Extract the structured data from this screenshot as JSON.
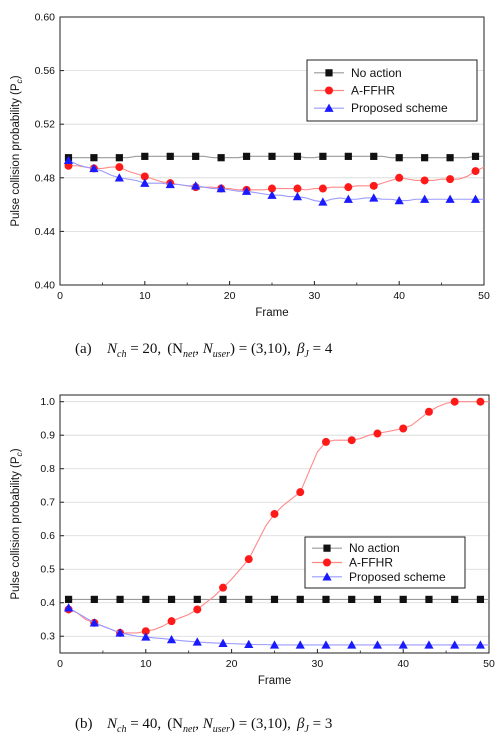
{
  "figure": {
    "captions": [
      {
        "label": "(a)",
        "text": "N_ch = 20, (N_net, N_user) = (3,10), β_J = 4",
        "parts": {
          "n_ch_base": "N",
          "n_ch_sub": "ch",
          "n_ch_val": " = 20,",
          "open": "(N",
          "net_sub": "net",
          "mid": ",  N",
          "user_sub": "user",
          "close": ") = (3,10),",
          "beta_base": "β",
          "beta_sub": "J",
          "beta_val": " = 4"
        }
      },
      {
        "label": "(b)",
        "text": "N_ch = 40, (N_net, N_user) = (3,10), β_J = 3",
        "parts": {
          "n_ch_base": "N",
          "n_ch_sub": "ch",
          "n_ch_val": " = 40,",
          "open": "(N",
          "net_sub": "net",
          "mid": ",  N",
          "user_sub": "user",
          "close": ") = (3,10),",
          "beta_base": "β",
          "beta_sub": "J",
          "beta_val": " = 3"
        }
      }
    ]
  },
  "chart_data": [
    {
      "type": "line",
      "xlabel": "Frame",
      "ylabel": "Pulse collision probability (P",
      "ylabel_sub": "c",
      "ylabel_end": ")",
      "xlim": [
        0,
        50
      ],
      "ylim": [
        0.4,
        0.6
      ],
      "xticks": [
        0,
        10,
        20,
        30,
        40,
        50
      ],
      "xtick_labels": [
        "0",
        "10",
        "20",
        "30",
        "40",
        "50"
      ],
      "yticks": [
        0.4,
        0.44,
        0.48,
        0.52,
        0.56,
        0.6
      ],
      "ytick_labels": [
        "0.40",
        "0.44",
        "0.48",
        "0.52",
        "0.56",
        "0.60"
      ],
      "grid": true,
      "legend_position": "top-right",
      "series": [
        {
          "name": "No action",
          "color": "#111111",
          "marker": "square",
          "line_color": "#9a9a9a",
          "x": [
            1,
            2,
            3,
            4,
            5,
            6,
            7,
            8,
            9,
            10,
            11,
            12,
            13,
            14,
            15,
            16,
            17,
            18,
            19,
            20,
            21,
            22,
            23,
            24,
            25,
            26,
            27,
            28,
            29,
            30,
            31,
            32,
            33,
            34,
            35,
            36,
            37,
            38,
            39,
            40,
            41,
            42,
            43,
            44,
            45,
            46,
            47,
            48,
            49,
            50
          ],
          "y": [
            0.495,
            0.495,
            0.495,
            0.495,
            0.495,
            0.495,
            0.495,
            0.495,
            0.496,
            0.496,
            0.496,
            0.496,
            0.496,
            0.496,
            0.496,
            0.496,
            0.496,
            0.495,
            0.495,
            0.495,
            0.495,
            0.496,
            0.496,
            0.496,
            0.496,
            0.496,
            0.496,
            0.496,
            0.495,
            0.495,
            0.496,
            0.496,
            0.496,
            0.496,
            0.496,
            0.496,
            0.496,
            0.496,
            0.495,
            0.495,
            0.495,
            0.495,
            0.495,
            0.495,
            0.495,
            0.495,
            0.495,
            0.495,
            0.496,
            0.496
          ],
          "marker_every": 3
        },
        {
          "name": "A-FFHR",
          "color": "#ff1a1a",
          "marker": "circle",
          "line_color": "#ff8a8a",
          "x": [
            1,
            2,
            3,
            4,
            5,
            6,
            7,
            8,
            9,
            10,
            11,
            12,
            13,
            14,
            15,
            16,
            17,
            18,
            19,
            20,
            21,
            22,
            23,
            24,
            25,
            26,
            27,
            28,
            29,
            30,
            31,
            32,
            33,
            34,
            35,
            36,
            37,
            38,
            39,
            40,
            41,
            42,
            43,
            44,
            45,
            46,
            47,
            48,
            49,
            50
          ],
          "y": [
            0.489,
            0.489,
            0.488,
            0.487,
            0.487,
            0.488,
            0.488,
            0.485,
            0.483,
            0.481,
            0.479,
            0.477,
            0.476,
            0.475,
            0.474,
            0.473,
            0.473,
            0.473,
            0.472,
            0.472,
            0.471,
            0.471,
            0.471,
            0.471,
            0.472,
            0.472,
            0.472,
            0.472,
            0.471,
            0.472,
            0.472,
            0.473,
            0.473,
            0.473,
            0.474,
            0.474,
            0.474,
            0.476,
            0.478,
            0.48,
            0.479,
            0.478,
            0.478,
            0.478,
            0.479,
            0.479,
            0.479,
            0.481,
            0.485,
            0.488
          ],
          "marker_every": 3
        },
        {
          "name": "Proposed scheme",
          "color": "#1a1aff",
          "marker": "triangle",
          "line_color": "#9a9aff",
          "x": [
            1,
            2,
            3,
            4,
            5,
            6,
            7,
            8,
            9,
            10,
            11,
            12,
            13,
            14,
            15,
            16,
            17,
            18,
            19,
            20,
            21,
            22,
            23,
            24,
            25,
            26,
            27,
            28,
            29,
            30,
            31,
            32,
            33,
            34,
            35,
            36,
            37,
            38,
            39,
            40,
            41,
            42,
            43,
            44,
            45,
            46,
            47,
            48,
            49,
            50
          ],
          "y": [
            0.493,
            0.49,
            0.488,
            0.487,
            0.485,
            0.482,
            0.48,
            0.479,
            0.478,
            0.476,
            0.476,
            0.476,
            0.475,
            0.475,
            0.474,
            0.474,
            0.473,
            0.472,
            0.472,
            0.471,
            0.47,
            0.47,
            0.469,
            0.468,
            0.467,
            0.467,
            0.466,
            0.466,
            0.465,
            0.463,
            0.462,
            0.464,
            0.465,
            0.464,
            0.464,
            0.465,
            0.465,
            0.464,
            0.464,
            0.463,
            0.463,
            0.464,
            0.464,
            0.464,
            0.464,
            0.464,
            0.464,
            0.464,
            0.464,
            0.464
          ],
          "marker_every": 3
        }
      ]
    },
    {
      "type": "line",
      "xlabel": "Frame",
      "ylabel": "Pulse collision probability (P",
      "ylabel_sub": "c",
      "ylabel_end": ")",
      "xlim": [
        0,
        50
      ],
      "ylim": [
        0.25,
        1.02
      ],
      "xticks": [
        0,
        10,
        20,
        30,
        40,
        50
      ],
      "xtick_labels": [
        "0",
        "10",
        "20",
        "30",
        "40",
        "50"
      ],
      "yticks": [
        0.3,
        0.4,
        0.5,
        0.6,
        0.7,
        0.8,
        0.9,
        1.0
      ],
      "ytick_labels": [
        "0.3",
        "0.4",
        "0.5",
        "0.6",
        "0.7",
        "0.8",
        "0.9",
        "1.0"
      ],
      "grid": true,
      "legend_position": "bottom-right",
      "series": [
        {
          "name": "No action",
          "color": "#111111",
          "marker": "square",
          "line_color": "#9a9a9a",
          "x": [
            1,
            2,
            3,
            4,
            5,
            6,
            7,
            8,
            9,
            10,
            11,
            12,
            13,
            14,
            15,
            16,
            17,
            18,
            19,
            20,
            21,
            22,
            23,
            24,
            25,
            26,
            27,
            28,
            29,
            30,
            31,
            32,
            33,
            34,
            35,
            36,
            37,
            38,
            39,
            40,
            41,
            42,
            43,
            44,
            45,
            46,
            47,
            48,
            49,
            50
          ],
          "y": [
            0.41,
            0.41,
            0.41,
            0.41,
            0.41,
            0.41,
            0.41,
            0.41,
            0.41,
            0.41,
            0.41,
            0.41,
            0.41,
            0.41,
            0.41,
            0.41,
            0.41,
            0.41,
            0.41,
            0.41,
            0.41,
            0.41,
            0.41,
            0.41,
            0.41,
            0.41,
            0.41,
            0.41,
            0.41,
            0.41,
            0.41,
            0.41,
            0.41,
            0.41,
            0.41,
            0.41,
            0.41,
            0.41,
            0.41,
            0.41,
            0.41,
            0.41,
            0.41,
            0.41,
            0.41,
            0.41,
            0.41,
            0.41,
            0.41,
            0.41
          ],
          "marker_every": 3
        },
        {
          "name": "A-FFHR",
          "color": "#ff1a1a",
          "marker": "circle",
          "line_color": "#ff8a8a",
          "x": [
            1,
            2,
            3,
            4,
            5,
            6,
            7,
            8,
            9,
            10,
            11,
            12,
            13,
            14,
            15,
            16,
            17,
            18,
            19,
            20,
            21,
            22,
            23,
            24,
            25,
            26,
            27,
            28,
            29,
            30,
            31,
            32,
            33,
            34,
            35,
            36,
            37,
            38,
            39,
            40,
            41,
            42,
            43,
            44,
            45,
            46,
            47,
            48,
            49,
            50
          ],
          "y": [
            0.38,
            0.37,
            0.35,
            0.34,
            0.33,
            0.32,
            0.31,
            0.31,
            0.31,
            0.315,
            0.32,
            0.33,
            0.345,
            0.355,
            0.365,
            0.38,
            0.4,
            0.42,
            0.445,
            0.47,
            0.5,
            0.53,
            0.58,
            0.63,
            0.665,
            0.69,
            0.71,
            0.73,
            0.79,
            0.85,
            0.88,
            0.885,
            0.885,
            0.885,
            0.89,
            0.9,
            0.905,
            0.91,
            0.915,
            0.92,
            0.93,
            0.95,
            0.97,
            0.985,
            0.995,
            1.0,
            1.0,
            1.0,
            1.0,
            1.0
          ],
          "marker_every": 3
        },
        {
          "name": "Proposed scheme",
          "color": "#1a1aff",
          "marker": "triangle",
          "line_color": "#9a9aff",
          "x": [
            1,
            2,
            3,
            4,
            5,
            6,
            7,
            8,
            9,
            10,
            11,
            12,
            13,
            14,
            15,
            16,
            17,
            18,
            19,
            20,
            21,
            22,
            23,
            24,
            25,
            26,
            27,
            28,
            29,
            30,
            31,
            32,
            33,
            34,
            35,
            36,
            37,
            38,
            39,
            40,
            41,
            42,
            43,
            44,
            45,
            46,
            47,
            48,
            49,
            50
          ],
          "y": [
            0.385,
            0.37,
            0.355,
            0.34,
            0.33,
            0.32,
            0.31,
            0.305,
            0.3,
            0.298,
            0.295,
            0.293,
            0.29,
            0.287,
            0.285,
            0.283,
            0.281,
            0.28,
            0.279,
            0.278,
            0.277,
            0.276,
            0.275,
            0.275,
            0.274,
            0.274,
            0.274,
            0.274,
            0.274,
            0.274,
            0.274,
            0.274,
            0.274,
            0.274,
            0.274,
            0.274,
            0.274,
            0.274,
            0.274,
            0.274,
            0.274,
            0.274,
            0.274,
            0.274,
            0.274,
            0.274,
            0.274,
            0.274,
            0.274,
            0.274
          ],
          "marker_every": 3
        }
      ]
    }
  ]
}
